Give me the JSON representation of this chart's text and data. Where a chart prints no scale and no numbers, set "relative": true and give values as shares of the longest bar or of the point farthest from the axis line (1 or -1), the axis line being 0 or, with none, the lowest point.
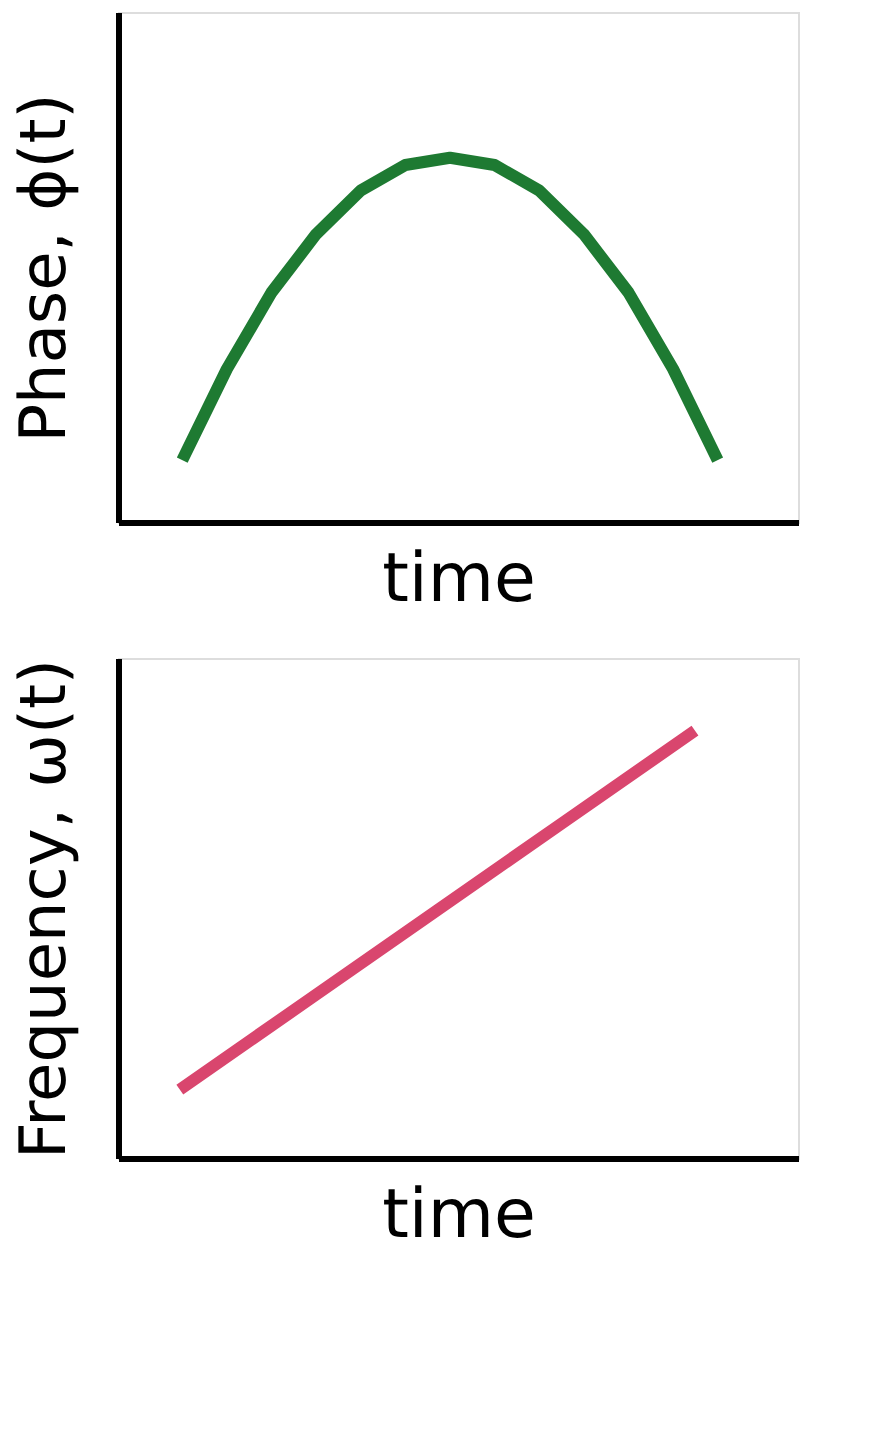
{
  "chart_data": [
    {
      "type": "line",
      "relative": true,
      "xlabel": "time",
      "ylabel": "Phase, ϕ(t)",
      "categories": [
        null,
        null,
        null,
        null,
        null,
        null,
        null,
        null,
        null,
        null,
        null,
        null,
        null
      ],
      "series": [
        {
          "color": "#1e7a32",
          "values": [
            0.17,
            0.42,
            0.63,
            0.79,
            0.91,
            0.98,
            1.0,
            0.98,
            0.91,
            0.79,
            0.63,
            0.42,
            0.17
          ]
        }
      ]
    },
    {
      "type": "line",
      "relative": true,
      "xlabel": "time",
      "ylabel": "Frequency, ω(t)",
      "categories": [
        null,
        null,
        null,
        null,
        null
      ],
      "series": [
        {
          "color": "#d9466e",
          "values": [
            0.16,
            0.37,
            0.58,
            0.79,
            1.0
          ]
        }
      ]
    }
  ]
}
